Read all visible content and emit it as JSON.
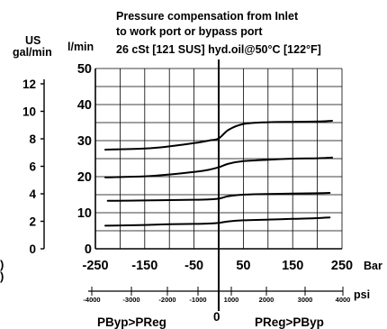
{
  "chart_data": {
    "type": "line",
    "title_lines": [
      "Pressure compensation from Inlet",
      "to work port or bypass port",
      "26 cSt [121 SUS] hyd.oil@50°C [122°F]"
    ],
    "left_unit_label": [
      "US",
      "gal/min"
    ],
    "y_unit_label": "l/min",
    "x_unit_label": "Bar",
    "psi_unit_label": "psi",
    "region_left_label": "PByp>PReg",
    "region_right_label": "PReg>PByp",
    "zero_label": "0",
    "xlim": [
      -250,
      250
    ],
    "ylim": [
      0,
      50
    ],
    "x_ticks": [
      "-250",
      "-150",
      "-50",
      "50",
      "150",
      "250"
    ],
    "y_ticks_lpm": [
      "0",
      "10",
      "20",
      "30",
      "40",
      "50"
    ],
    "y_ticks_gpm": [
      "0",
      "2",
      "4",
      "6",
      "8",
      "10",
      "12"
    ],
    "psi_ticks": [
      "-4000",
      "-3000",
      "-2000",
      "-1000",
      "1000",
      "2000",
      "3000",
      "4000"
    ],
    "side_labels": [
      ")",
      ")"
    ],
    "grid": true,
    "series": [
      {
        "x": [
          -230,
          -150,
          -100,
          -50,
          -20,
          0,
          20,
          50,
          100,
          150,
          200,
          230
        ],
        "y": [
          27.5,
          27.8,
          28.4,
          29.3,
          30.0,
          30.6,
          33.0,
          34.6,
          35.1,
          35.2,
          35.3,
          35.5
        ]
      },
      {
        "x": [
          -230,
          -150,
          -100,
          -50,
          -20,
          0,
          20,
          50,
          100,
          150,
          200,
          230
        ],
        "y": [
          19.8,
          20.1,
          20.6,
          21.3,
          21.9,
          22.6,
          23.6,
          24.3,
          24.7,
          25.0,
          25.1,
          25.3
        ]
      },
      {
        "x": [
          -225,
          -150,
          -100,
          -50,
          -20,
          0,
          20,
          50,
          100,
          150,
          200,
          225
        ],
        "y": [
          13.3,
          13.4,
          13.5,
          13.6,
          13.7,
          13.9,
          14.6,
          15.0,
          15.2,
          15.3,
          15.4,
          15.5
        ]
      },
      {
        "x": [
          -230,
          -150,
          -100,
          -50,
          -20,
          0,
          20,
          50,
          100,
          150,
          200,
          225
        ],
        "y": [
          6.4,
          6.6,
          6.8,
          6.9,
          7.0,
          7.2,
          7.6,
          7.9,
          8.1,
          8.3,
          8.5,
          8.7
        ]
      }
    ]
  }
}
